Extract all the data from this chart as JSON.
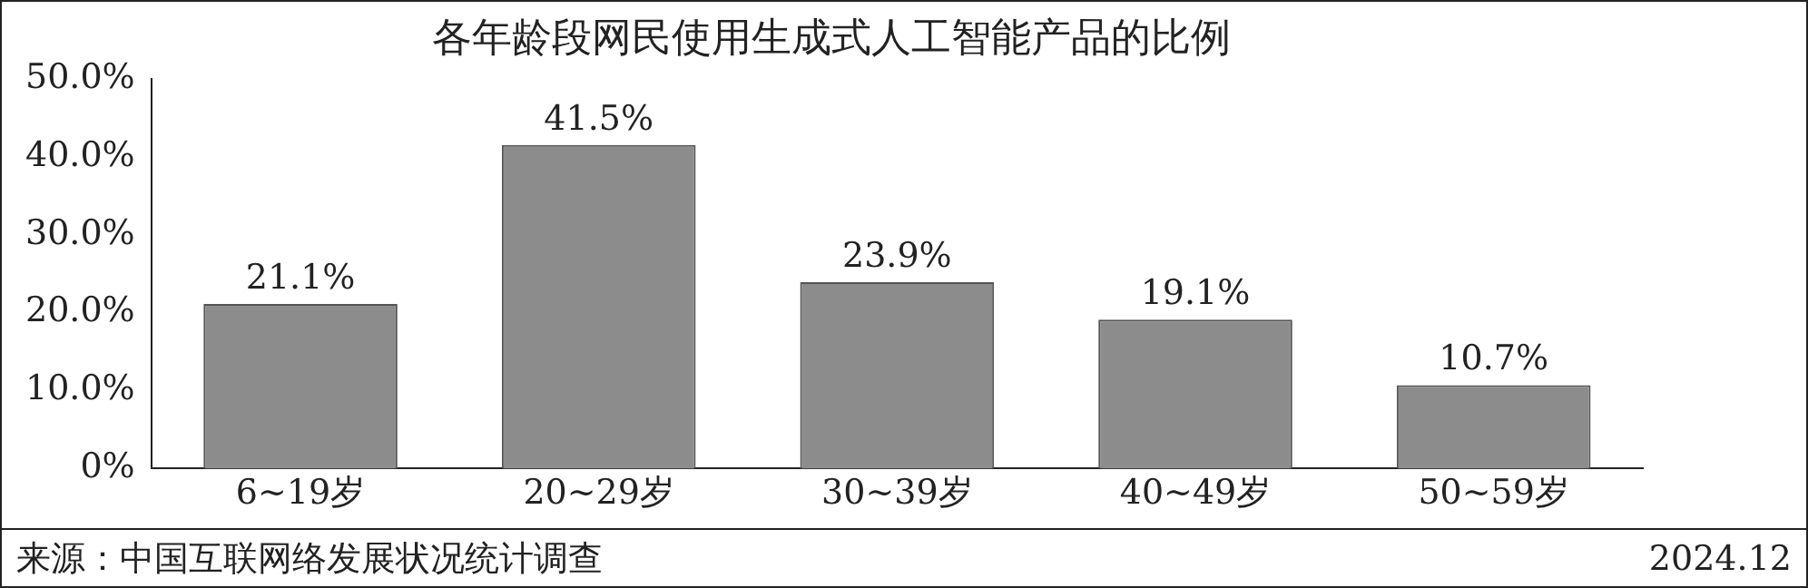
{
  "chart_data": {
    "type": "bar",
    "title": "各年龄段网民使用生成式人工智能产品的比例",
    "categories": [
      "6~19岁",
      "20~29岁",
      "30~39岁",
      "40~49岁",
      "50~59岁"
    ],
    "values": [
      21.1,
      41.5,
      23.9,
      19.1,
      10.7
    ],
    "value_labels": [
      "21.1%",
      "41.5%",
      "23.9%",
      "19.1%",
      "10.7%"
    ],
    "color": "#8c8c8c",
    "ylim": [
      0,
      50
    ],
    "yticks": [
      {
        "value": 0,
        "label": "0%"
      },
      {
        "value": 10,
        "label": "10.0%"
      },
      {
        "value": 20,
        "label": "20.0%"
      },
      {
        "value": 30,
        "label": "30.0%"
      },
      {
        "value": 40,
        "label": "40.0%"
      },
      {
        "value": 50,
        "label": "50.0%"
      }
    ],
    "grid": false,
    "legend": false,
    "annotations": [
      "来源：中国互联网络发展状况统计调查",
      "2024.12"
    ]
  }
}
